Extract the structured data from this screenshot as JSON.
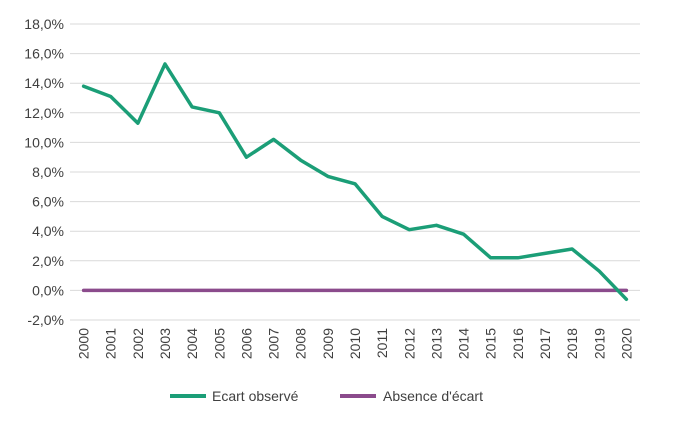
{
  "chart_data": {
    "type": "line",
    "title": "",
    "xlabel": "",
    "ylabel": "",
    "x": [
      "2000",
      "2001",
      "2002",
      "2003",
      "2004",
      "2005",
      "2006",
      "2007",
      "2008",
      "2009",
      "2010",
      "2011",
      "2012",
      "2013",
      "2014",
      "2015",
      "2016",
      "2017",
      "2018",
      "2019",
      "2020"
    ],
    "yticks": [
      "18,0%",
      "16,0%",
      "14,0%",
      "12,0%",
      "10,0%",
      "8,0%",
      "6,0%",
      "4,0%",
      "2,0%",
      "0,0%",
      "-2,0%"
    ],
    "ylim": [
      -2,
      18
    ],
    "grid": true,
    "legend": "bottom",
    "series": [
      {
        "name": "Ecart observé",
        "color": "#1b9e77",
        "values": [
          13.8,
          13.1,
          11.3,
          15.3,
          12.4,
          12.0,
          9.0,
          10.2,
          8.8,
          7.7,
          7.2,
          5.0,
          4.1,
          4.4,
          3.8,
          2.2,
          2.2,
          2.5,
          2.8,
          1.3,
          -0.6
        ]
      },
      {
        "name": "Absence d'écart",
        "color": "#8b4b8c",
        "values": [
          0,
          0,
          0,
          0,
          0,
          0,
          0,
          0,
          0,
          0,
          0,
          0,
          0,
          0,
          0,
          0,
          0,
          0,
          0,
          0,
          0
        ]
      }
    ]
  }
}
